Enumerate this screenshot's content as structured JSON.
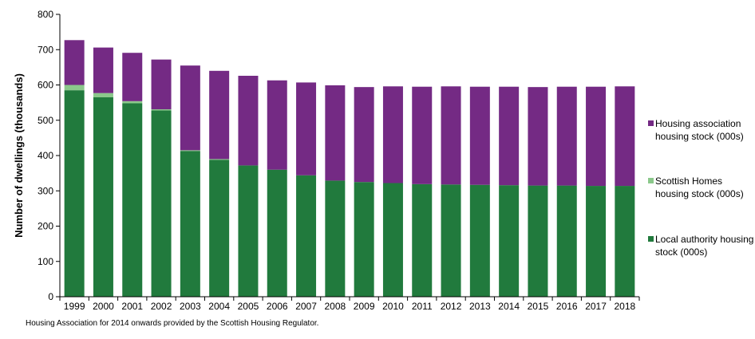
{
  "chart_data": {
    "type": "bar",
    "stacked": true,
    "title": "",
    "xlabel": "",
    "ylabel": "Number of dwellings (thousands)",
    "ylim": [
      0,
      800
    ],
    "yticks": [
      0,
      100,
      200,
      300,
      400,
      500,
      600,
      700,
      800
    ],
    "grid": false,
    "legend_position": "right",
    "categories": [
      "1999",
      "2000",
      "2001",
      "2002",
      "2003",
      "2004",
      "2005",
      "2006",
      "2007",
      "2008",
      "2009",
      "2010",
      "2011",
      "2012",
      "2013",
      "2014",
      "2015",
      "2016",
      "2017",
      "2018"
    ],
    "series": [
      {
        "name": " Local authority housing stock (000s)",
        "color": "#217a3d",
        "values": [
          585,
          565,
          548,
          528,
          413,
          388,
          372,
          360,
          344,
          329,
          325,
          322,
          319,
          318,
          317,
          316,
          315,
          315,
          314,
          314
        ]
      },
      {
        "name": "Scottish Homes housing stock (000s)",
        "color": "#8bc88b",
        "values": [
          15,
          12,
          6,
          3,
          2,
          2,
          0,
          0,
          0,
          0,
          0,
          0,
          0,
          0,
          0,
          0,
          0,
          0,
          0,
          0
        ]
      },
      {
        "name": "Housing association housing stock (000s)",
        "color": "#742a84",
        "values": [
          127,
          129,
          137,
          141,
          240,
          250,
          254,
          253,
          263,
          270,
          269,
          274,
          276,
          278,
          278,
          279,
          279,
          280,
          281,
          282
        ]
      }
    ]
  },
  "legend_order": [
    2,
    1,
    0
  ],
  "footnote": "Housing Association for 2014 onwards provided by the Scottish Housing Regulator."
}
